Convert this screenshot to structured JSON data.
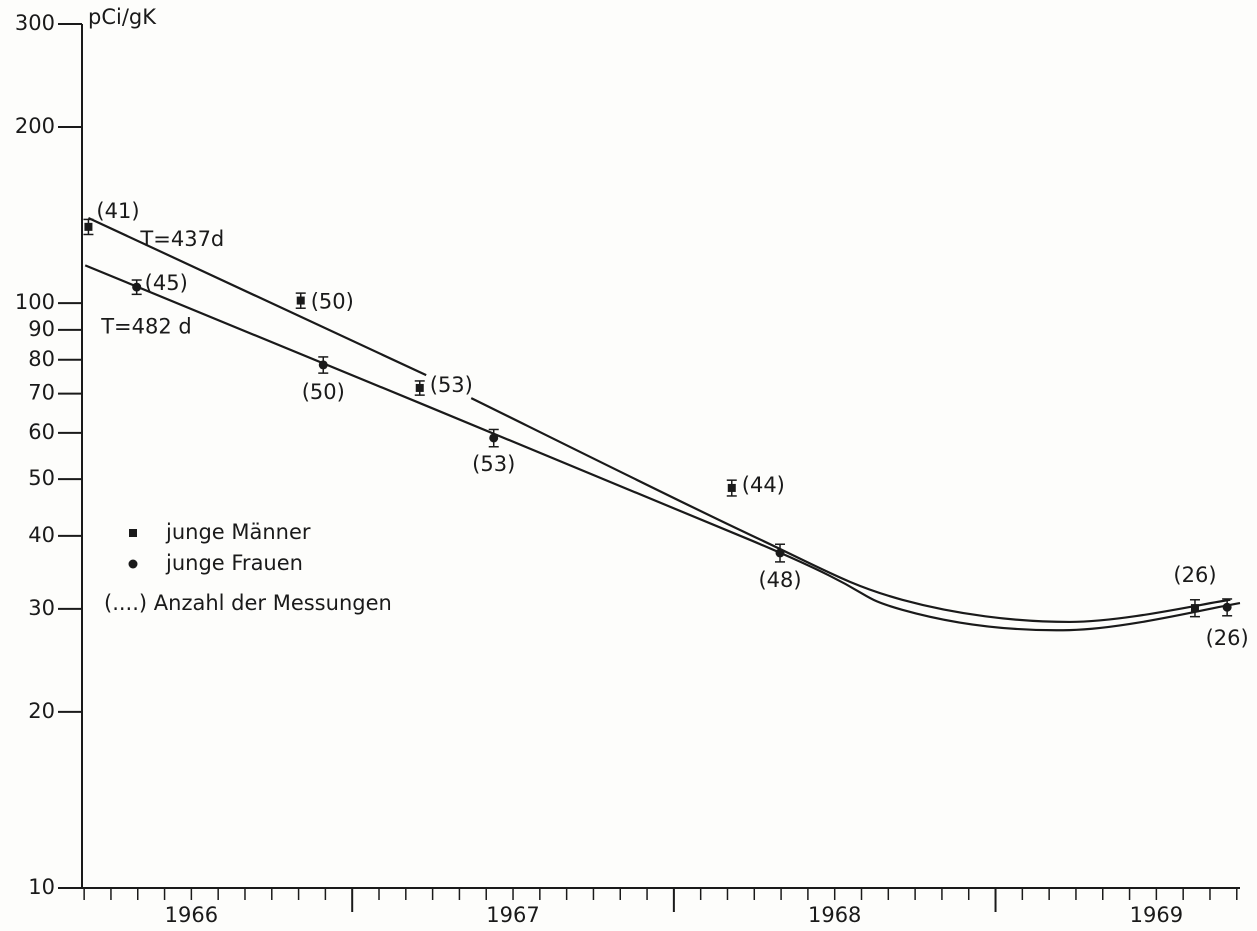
{
  "chart_data": {
    "type": "scatter",
    "y_label": "pCi/gK",
    "log_y": true,
    "ylim": [
      10,
      300
    ],
    "yticks": [
      10,
      20,
      30,
      40,
      50,
      60,
      70,
      80,
      90,
      100,
      200,
      300
    ],
    "xlim": [
      1966.16,
      1969.76
    ],
    "xticks": [
      {
        "value": 1966.5,
        "label": "1966"
      },
      {
        "value": 1967.5,
        "label": "1967"
      },
      {
        "value": 1968.5,
        "label": "1968"
      },
      {
        "value": 1969.5,
        "label": "1969"
      }
    ],
    "year_ticks": [
      1967,
      1968,
      1969
    ],
    "series": [
      {
        "name": "junge Männer",
        "marker": "square",
        "color": "#1a1a1a",
        "x": [
          1966.18,
          1966.84,
          1967.21,
          1968.18,
          1969.62
        ],
        "values": [
          135,
          101,
          71.6,
          48.3,
          30.1
        ],
        "errors": [
          4,
          3,
          2,
          1.5,
          1
        ],
        "counts": [
          "(41)",
          "(50)",
          "(53)",
          "(44)",
          "(26)"
        ]
      },
      {
        "name": "junge Frauen",
        "marker": "circle",
        "color": "#1a1a1a",
        "x": [
          1966.33,
          1966.91,
          1967.44,
          1968.33,
          1969.72
        ],
        "values": [
          106.5,
          78.4,
          58.8,
          37.4,
          30.2
        ],
        "errors": [
          3,
          2.5,
          2,
          1.3,
          1
        ],
        "counts": [
          "(45)",
          "(50)",
          "(53)",
          "(48)",
          "(26)"
        ]
      }
    ],
    "fits": [
      {
        "label": "T=437d",
        "x": [
          1966.18,
          1967.23,
          1967.3,
          1967.37,
          1968.24,
          1968.71,
          1969.23,
          1969.73
        ],
        "values": [
          139.8,
          75.3,
          null,
          68.8,
          40.1,
          31.1,
          28.5,
          31.1
        ]
      },
      {
        "label": "T=482 d",
        "x": [
          1966.17,
          1968.24,
          1968.71,
          1969.23,
          1969.76
        ],
        "values": [
          116,
          39.3,
          29.9,
          27.6,
          30.7
        ]
      }
    ],
    "legend_note": "(....) Anzahl der Messungen"
  }
}
